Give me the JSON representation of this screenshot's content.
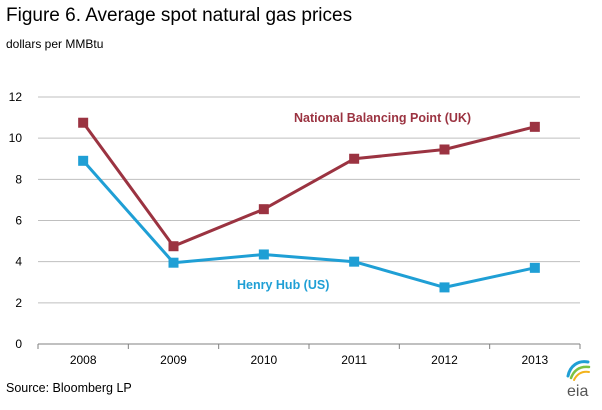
{
  "figure": {
    "title": "Figure  6. Average spot natural gas prices",
    "units": "dollars per MMBtu",
    "source": "Source:  Bloomberg LP",
    "logo_text": "eia"
  },
  "chart_data": {
    "type": "line",
    "title": "Figure  6. Average spot natural gas prices",
    "ylabel": "dollars per MMBtu",
    "x": [
      "2008",
      "2009",
      "2010",
      "2011",
      "2012",
      "2013"
    ],
    "ylim": [
      0,
      12
    ],
    "yticks": [
      "0",
      "2",
      "4",
      "6",
      "8",
      "10",
      "12"
    ],
    "grid": "horizontal",
    "series": [
      {
        "name": "National Balancing Point (UK)",
        "color": "#9b3341",
        "values": [
          10.75,
          4.75,
          6.55,
          9.0,
          9.45,
          10.55
        ]
      },
      {
        "name": "Henry Hub (US)",
        "color": "#1f9fd5",
        "values": [
          8.9,
          3.95,
          4.35,
          4.0,
          2.75,
          3.7
        ]
      }
    ]
  }
}
